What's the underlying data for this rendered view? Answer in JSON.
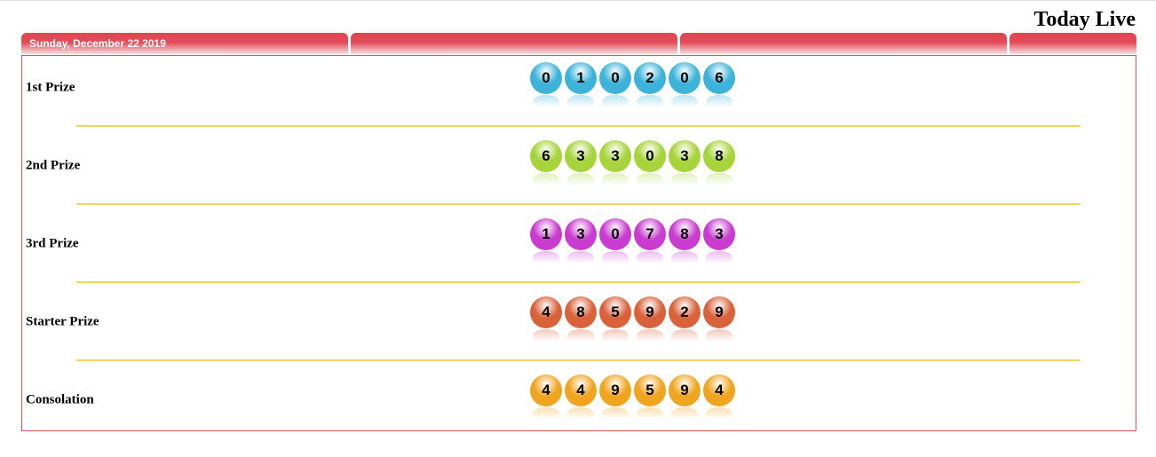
{
  "header": {
    "title": "Today Live",
    "date": "Sunday, December 22 2019"
  },
  "prizes": [
    {
      "label": "1st Prize",
      "digits": [
        "0",
        "1",
        "0",
        "2",
        "0",
        "6"
      ],
      "color": "#3db3d9"
    },
    {
      "label": "2nd Prize",
      "digits": [
        "6",
        "3",
        "3",
        "0",
        "3",
        "8"
      ],
      "color": "#a6d43a"
    },
    {
      "label": "3rd Prize",
      "digits": [
        "1",
        "3",
        "0",
        "7",
        "8",
        "3"
      ],
      "color": "#c93ccf"
    },
    {
      "label": "Starter Prize",
      "digits": [
        "4",
        "8",
        "5",
        "9",
        "2",
        "9"
      ],
      "color": "#d9623a"
    },
    {
      "label": "Consolation",
      "digits": [
        "4",
        "4",
        "9",
        "5",
        "9",
        "4"
      ],
      "color": "#f0a520"
    }
  ]
}
